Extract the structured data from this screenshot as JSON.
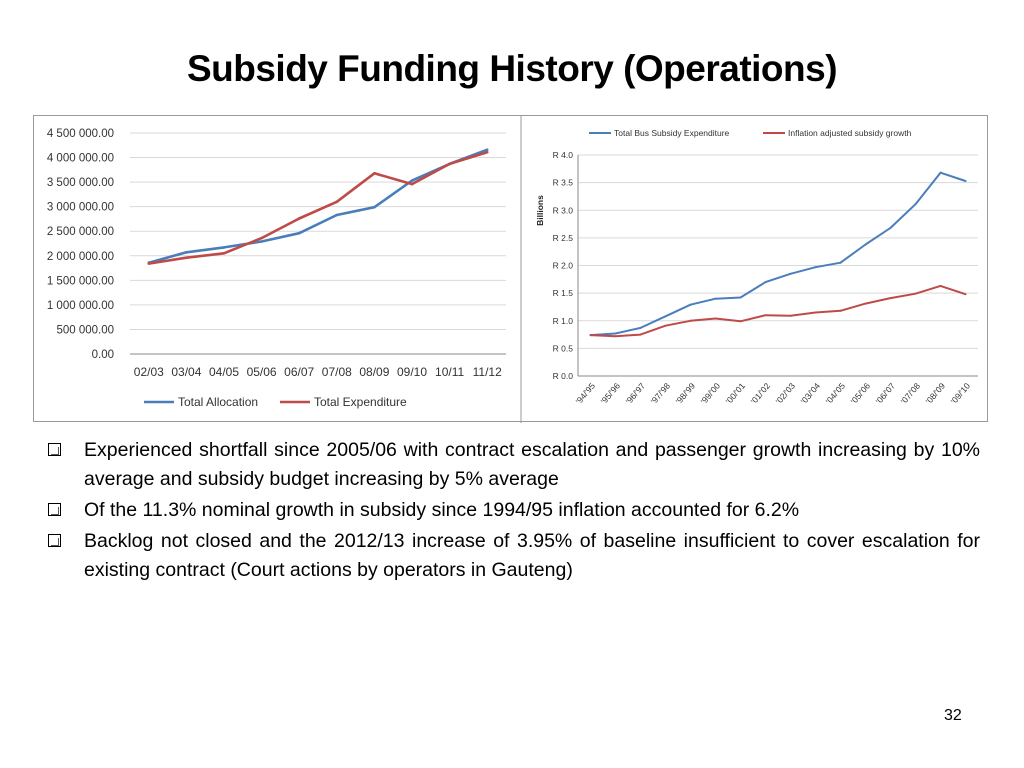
{
  "slide": {
    "title": "Subsidy Funding History (Operations)",
    "page_number": "32"
  },
  "bullets": [
    "Experienced shortfall since 2005/06 with contract escalation and passenger growth increasing by 10% average and subsidy budget increasing by 5% average",
    "Of the 11.3% nominal growth in subsidy since 1994/95 inflation accounted for 6.2%",
    "Backlog not closed and the 2012/13 increase of 3.95% of baseline insufficient to cover escalation for existing contract (Court actions by operators in Gauteng)"
  ],
  "chart_data": [
    {
      "type": "line",
      "categories": [
        "02/03",
        "03/04",
        "04/05",
        "05/06",
        "06/07",
        "07/08",
        "08/09",
        "09/10",
        "10/11",
        "11/12"
      ],
      "ylim": [
        0,
        4500000
      ],
      "yticks": [
        "0.00",
        "500 000.00",
        "1 000 000.00",
        "1 500 000.00",
        "2 000 000.00",
        "2 500 000.00",
        "3 000 000.00",
        "3 500 000.00",
        "4 000 000.00",
        "4 500 000.00"
      ],
      "grid": true,
      "legend_position": "bottom",
      "series": [
        {
          "name": "Total Allocation",
          "color": "#4a7ebb",
          "values": [
            1860000,
            2070000,
            2170000,
            2290000,
            2460000,
            2830000,
            2990000,
            3530000,
            3870000,
            4160000
          ]
        },
        {
          "name": "Total Expenditure",
          "color": "#be4b48",
          "values": [
            1840000,
            1960000,
            2050000,
            2360000,
            2760000,
            3100000,
            3680000,
            3460000,
            3870000,
            4110000
          ]
        }
      ]
    },
    {
      "type": "line",
      "categories": [
        "'94/'95",
        "'95/'96",
        "'96/'97",
        "'97/'98",
        "'98/'99",
        "'99/'00",
        "'00/'01",
        "'01/'02",
        "'02/'03",
        "'03/'04",
        "'04/'05",
        "'05/'06",
        "'06/'07",
        "'07/'08",
        "'08/'09",
        "'09/'10"
      ],
      "ylabel": "Billions",
      "ylim": [
        0,
        4.0
      ],
      "yticks": [
        "R 0.0",
        "R 0.5",
        "R 1.0",
        "R 1.5",
        "R 2.0",
        "R 2.5",
        "R 3.0",
        "R 3.5",
        "R 4.0"
      ],
      "grid": true,
      "legend_position": "top",
      "series": [
        {
          "name": "Total Bus Subsidy Expenditure",
          "color": "#4a7ebb",
          "values": [
            0.74,
            0.77,
            0.87,
            1.08,
            1.29,
            1.4,
            1.42,
            1.7,
            1.85,
            1.97,
            2.05,
            2.38,
            2.68,
            3.11,
            3.68,
            3.53
          ]
        },
        {
          "name": "Inflation adjusted subsidy growth",
          "color": "#be4b48",
          "values": [
            0.74,
            0.72,
            0.75,
            0.91,
            1.0,
            1.04,
            0.99,
            1.1,
            1.09,
            1.15,
            1.18,
            1.31,
            1.41,
            1.49,
            1.63,
            1.48
          ]
        }
      ]
    }
  ]
}
